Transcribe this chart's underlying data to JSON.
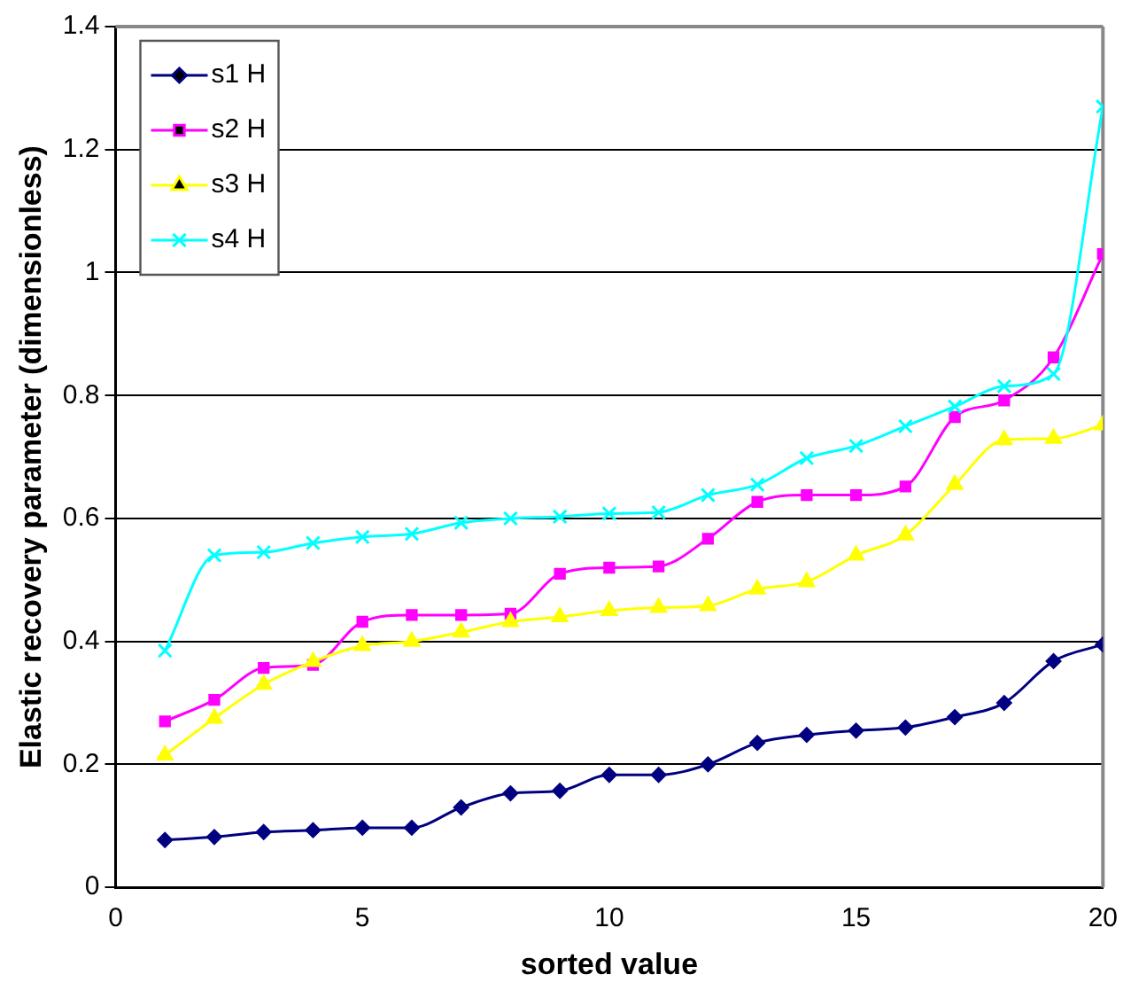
{
  "chart_data": {
    "type": "line",
    "xlabel": "sorted value",
    "ylabel": "Elastic recovery parameter (dimensionless)",
    "x": [
      1,
      2,
      3,
      4,
      5,
      6,
      7,
      8,
      9,
      10,
      11,
      12,
      13,
      14,
      15,
      16,
      17,
      18,
      19,
      20
    ],
    "xlim": [
      0,
      20
    ],
    "xticks": [
      0,
      5,
      10,
      15,
      20
    ],
    "ylim": [
      0,
      1.4
    ],
    "yticks": [
      0,
      0.2,
      0.4,
      0.6,
      0.8,
      1,
      1.2,
      1.4
    ],
    "grid": "y",
    "legend": "top left",
    "series": [
      {
        "name": "s1 H",
        "color": "#000080",
        "marker": "diamond",
        "values": [
          0.077,
          0.082,
          0.09,
          0.093,
          0.097,
          0.097,
          0.13,
          0.153,
          0.157,
          0.183,
          0.183,
          0.2,
          0.235,
          0.248,
          0.255,
          0.26,
          0.277,
          0.3,
          0.368,
          0.395
        ]
      },
      {
        "name": "s2 H",
        "color": "#ff00ff",
        "marker": "square",
        "values": [
          0.27,
          0.305,
          0.357,
          0.362,
          0.432,
          0.443,
          0.443,
          0.445,
          0.51,
          0.52,
          0.522,
          0.567,
          0.627,
          0.638,
          0.638,
          0.652,
          0.765,
          0.792,
          0.862,
          1.03
        ]
      },
      {
        "name": "s3 H",
        "color": "#ffff00",
        "marker": "triangle",
        "values": [
          0.215,
          0.275,
          0.33,
          0.367,
          0.393,
          0.4,
          0.415,
          0.432,
          0.44,
          0.45,
          0.455,
          0.458,
          0.485,
          0.497,
          0.54,
          0.573,
          0.655,
          0.728,
          0.73,
          0.752
        ]
      },
      {
        "name": "s4 H",
        "color": "#00ffff",
        "marker": "cross",
        "values": [
          0.385,
          0.54,
          0.545,
          0.56,
          0.57,
          0.575,
          0.593,
          0.6,
          0.603,
          0.608,
          0.61,
          0.638,
          0.655,
          0.698,
          0.718,
          0.75,
          0.782,
          0.815,
          0.835,
          1.27
        ]
      }
    ]
  }
}
